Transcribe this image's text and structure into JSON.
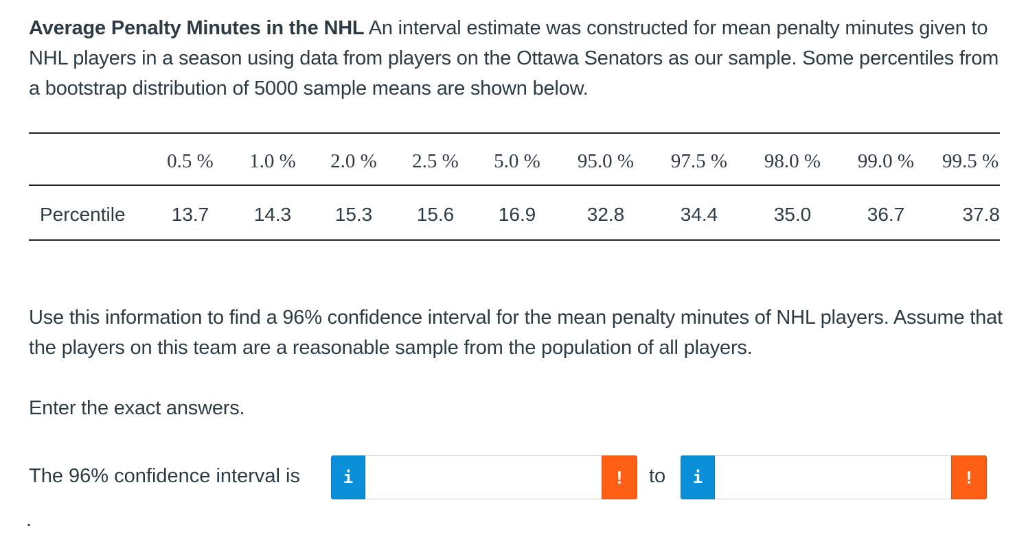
{
  "problem": {
    "title": "Average Penalty Minutes in the NHL",
    "intro": "An interval estimate was constructed for mean penalty minutes given to NHL players in a season using data from players on the Ottawa Senators as our sample. Some percentiles from a bootstrap distribution of 5000 sample means are shown below.",
    "question": "Use this information to find a 96% confidence interval for the mean penalty minutes of NHL players. Assume that the players on this team are a reasonable sample from the population of all players.",
    "instruction": "Enter the exact answers."
  },
  "table": {
    "row_label": "Percentile",
    "headers": [
      "0.5 %",
      "1.0 %",
      "2.0 %",
      "2.5 %",
      "5.0 %",
      "95.0 %",
      "97.5 %",
      "98.0 %",
      "99.0 %",
      "99.5 %"
    ],
    "values": [
      "13.7",
      "14.3",
      "15.3",
      "15.6",
      "16.9",
      "32.8",
      "34.4",
      "35.0",
      "36.7",
      "37.8"
    ]
  },
  "answer": {
    "label": "The 96% confidence interval is",
    "info_icon_text": "i",
    "warn_icon_text": "!",
    "lower_value": "",
    "upper_value": "",
    "to_label": "to",
    "end_punctuation": "."
  },
  "colors": {
    "text": "#2d3b45",
    "info_blue": "#0b8ed8",
    "warning_orange": "#fc5e13",
    "input_border": "#c7cdd1"
  },
  "icons": {
    "info": "info-icon",
    "warning": "exclamation-icon"
  }
}
